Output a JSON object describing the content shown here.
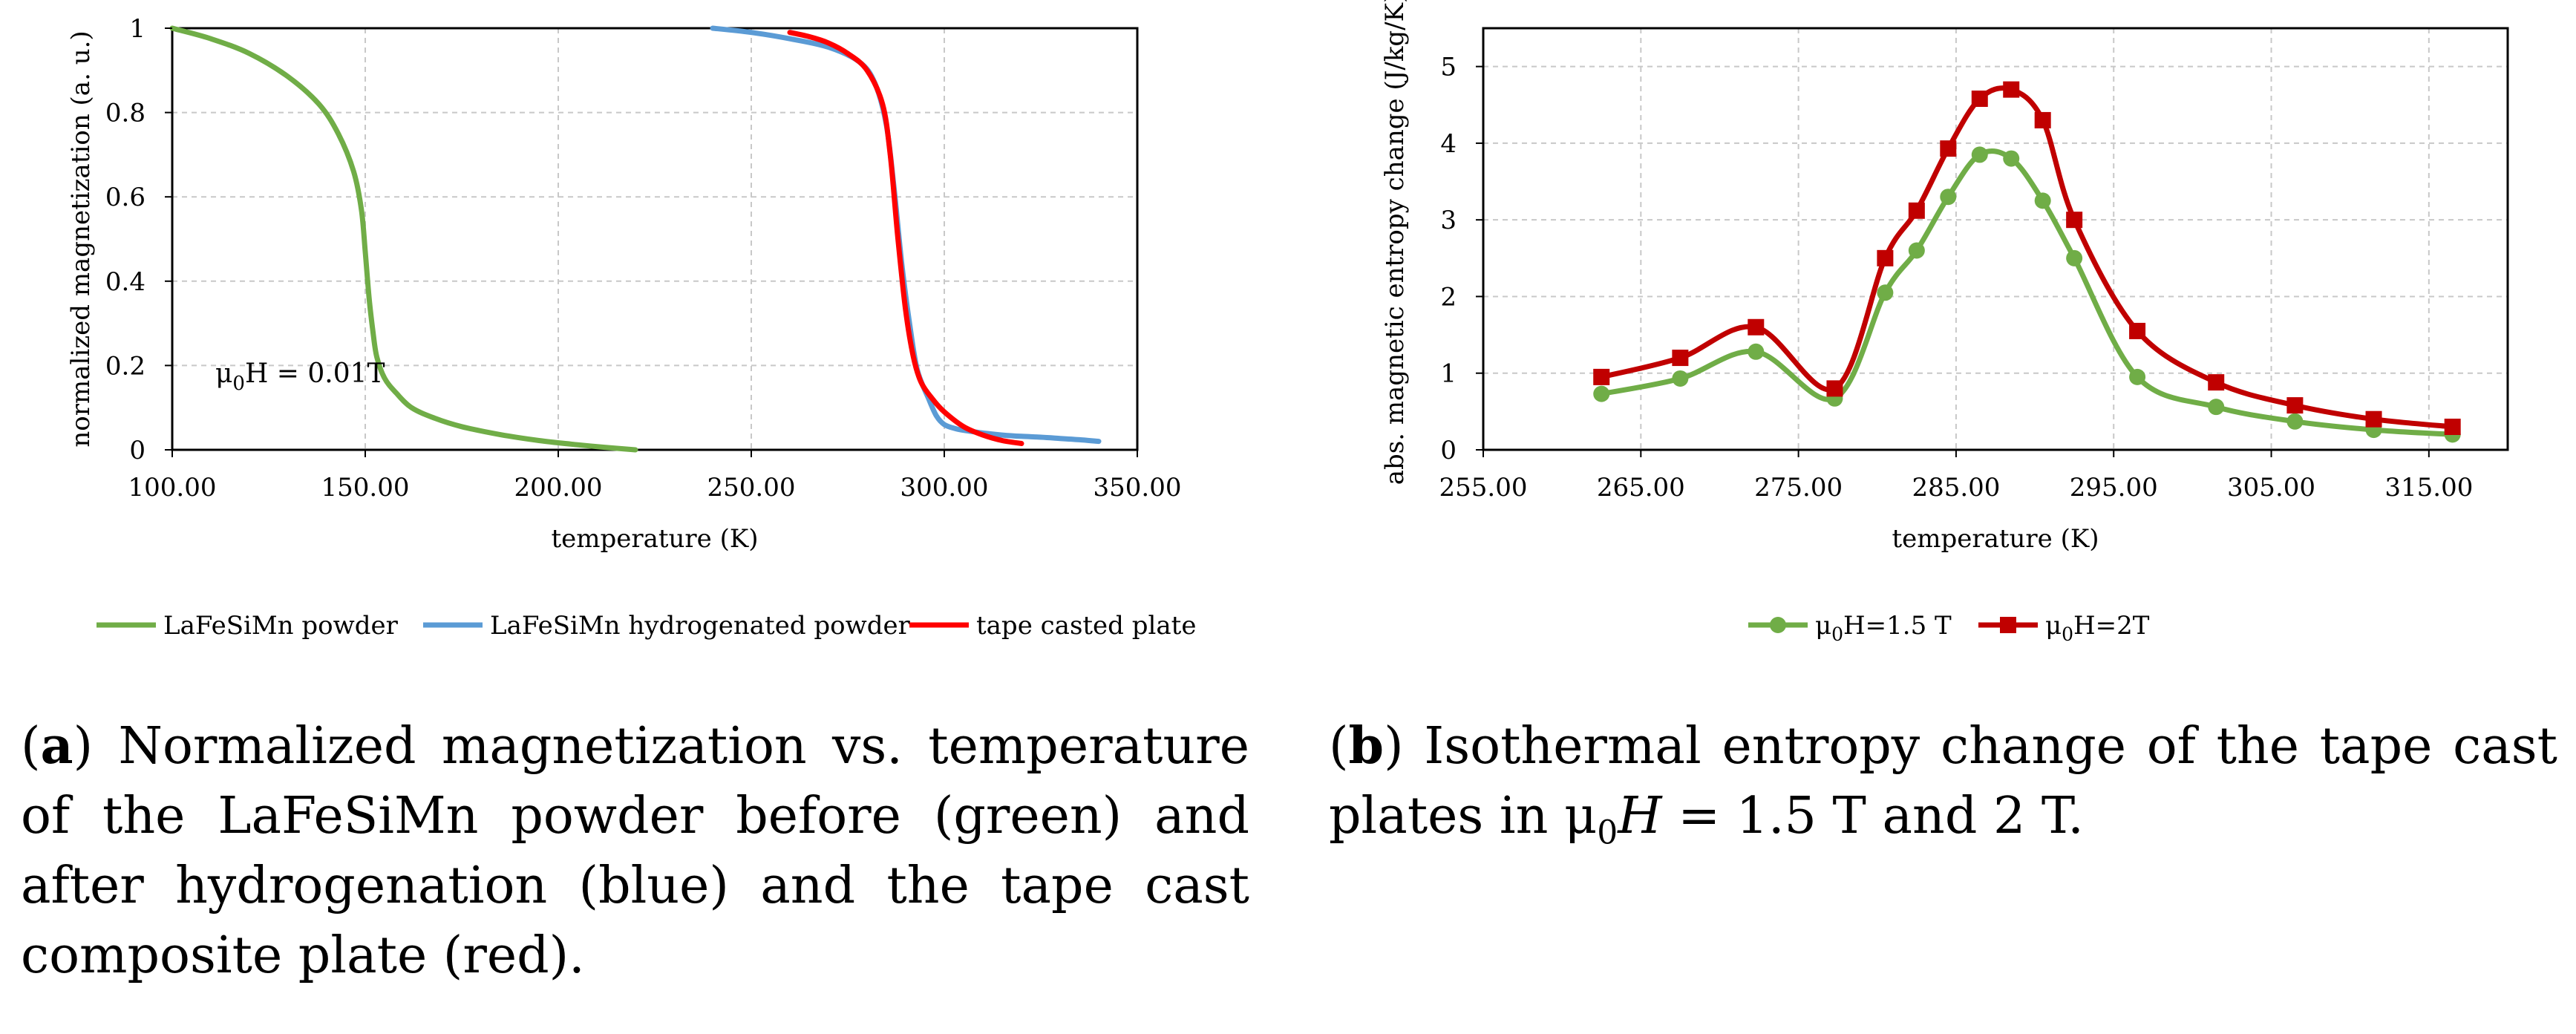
{
  "chart_data": [
    {
      "type": "line",
      "id": "a",
      "xlabel": "temperature (K)",
      "ylabel": "normalized magnetization (a. u.)",
      "xlim": [
        100,
        350
      ],
      "ylim": [
        0,
        1
      ],
      "xticks": [
        "100.00",
        "150.00",
        "200.00",
        "250.00",
        "300.00",
        "350.00"
      ],
      "xtick_values": [
        100,
        150,
        200,
        250,
        300,
        350
      ],
      "yticks": [
        "0",
        "0.2",
        "0.4",
        "0.6",
        "0.8",
        "1"
      ],
      "ytick_values": [
        0,
        0.2,
        0.4,
        0.6,
        0.8,
        1
      ],
      "annotation": {
        "prefix": "μ",
        "sub": "0",
        "suffix": "H = 0.01T"
      },
      "series": [
        {
          "name": "LaFeSiMn powder",
          "color": "#70ad47",
          "x": [
            100,
            110,
            120,
            130,
            138,
            143,
            147,
            149,
            150,
            151,
            152,
            153,
            155,
            158,
            162,
            168,
            175,
            185,
            195,
            205,
            212,
            220
          ],
          "y": [
            1.0,
            0.975,
            0.94,
            0.885,
            0.82,
            0.75,
            0.66,
            0.57,
            0.47,
            0.36,
            0.28,
            0.22,
            0.17,
            0.135,
            0.1,
            0.075,
            0.055,
            0.036,
            0.022,
            0.012,
            0.006,
            0.0
          ]
        },
        {
          "name": "LaFeSiMn hydrogenated powder",
          "color": "#5b9bd5",
          "x": [
            240,
            250,
            260,
            270,
            278,
            282,
            285,
            287,
            289,
            291,
            293,
            296,
            298,
            300,
            303,
            306,
            310,
            315,
            320,
            325,
            330,
            335,
            340
          ],
          "y": [
            1.0,
            0.99,
            0.975,
            0.955,
            0.92,
            0.87,
            0.77,
            0.62,
            0.44,
            0.3,
            0.19,
            0.12,
            0.08,
            0.06,
            0.05,
            0.045,
            0.04,
            0.035,
            0.032,
            0.03,
            0.027,
            0.024,
            0.02
          ]
        },
        {
          "name": "tape casted plate",
          "color": "#ff0000",
          "x": [
            260,
            265,
            270,
            275,
            280,
            284,
            286,
            288,
            290,
            292,
            294,
            297,
            300,
            305,
            310,
            315,
            320
          ],
          "y": [
            0.99,
            0.98,
            0.965,
            0.94,
            0.9,
            0.82,
            0.7,
            0.5,
            0.33,
            0.22,
            0.16,
            0.12,
            0.09,
            0.055,
            0.035,
            0.022,
            0.015
          ]
        }
      ]
    },
    {
      "type": "line",
      "id": "b",
      "xlabel": "temperature (K)",
      "ylabel": "abs. magnetic entropy change (J/kg/K)",
      "xlim": [
        255,
        320
      ],
      "ylim": [
        0,
        5.5
      ],
      "xticks": [
        "255.00",
        "265.00",
        "275.00",
        "285.00",
        "295.00",
        "305.00",
        "315.00"
      ],
      "xtick_values": [
        255,
        265,
        275,
        285,
        295,
        305,
        315
      ],
      "yticks": [
        "0",
        "1",
        "2",
        "3",
        "4",
        "5"
      ],
      "ytick_values": [
        0,
        1,
        2,
        3,
        4,
        5
      ],
      "series": [
        {
          "name_prefix": "μ",
          "name_sub": "0",
          "name_suffix": "H=1.5 T",
          "marker": "circle",
          "color": "#70ad47",
          "x": [
            262.5,
            267.5,
            272.3,
            277.3,
            280.5,
            282.5,
            284.5,
            286.5,
            288.5,
            290.5,
            292.5,
            296.5,
            301.5,
            306.5,
            311.5,
            316.5
          ],
          "y": [
            0.73,
            0.93,
            1.28,
            0.67,
            2.05,
            2.6,
            3.3,
            3.85,
            3.8,
            3.25,
            2.5,
            0.95,
            0.56,
            0.37,
            0.26,
            0.2
          ]
        },
        {
          "name_prefix": "μ",
          "name_sub": "0",
          "name_suffix": "H=2T",
          "marker": "square",
          "color": "#c00000",
          "x": [
            262.5,
            267.5,
            272.3,
            277.3,
            280.5,
            282.5,
            284.5,
            286.5,
            288.5,
            290.5,
            292.5,
            296.5,
            301.5,
            306.5,
            311.5,
            316.5
          ],
          "y": [
            0.95,
            1.2,
            1.6,
            0.8,
            2.5,
            3.12,
            3.93,
            4.58,
            4.7,
            4.3,
            3.0,
            1.55,
            0.88,
            0.58,
            0.4,
            0.3
          ]
        }
      ]
    }
  ],
  "captions": {
    "a": {
      "label": "a",
      "text": "Normalized magnetization vs.  temperature of the LaFeSiMn powder before (green) and after hydrogenation (blue) and the tape cast composite plate (red)."
    },
    "b": {
      "label": "b",
      "pre": "Isothermal entropy change of the tape cast plates in ",
      "mu": "μ",
      "sub": "0",
      "H": "H",
      "post": " = 1.5 T and 2 T."
    }
  }
}
